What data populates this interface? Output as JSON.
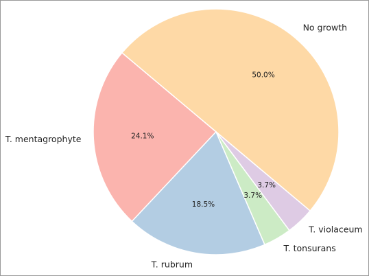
{
  "chart_data": {
    "type": "pie",
    "categories": [
      "No growth",
      "T. mentagrophyte",
      "T. rubrum",
      "T. tonsurans",
      "T. violaceum"
    ],
    "values": [
      50.0,
      24.1,
      18.5,
      3.7,
      3.7
    ],
    "value_labels": [
      "50.0%",
      "24.1%",
      "18.5%",
      "3.7%",
      "3.7%"
    ],
    "colors": [
      "#fed9a6",
      "#fbb4ae",
      "#b3cde3",
      "#ccebc5",
      "#decbe4"
    ]
  }
}
